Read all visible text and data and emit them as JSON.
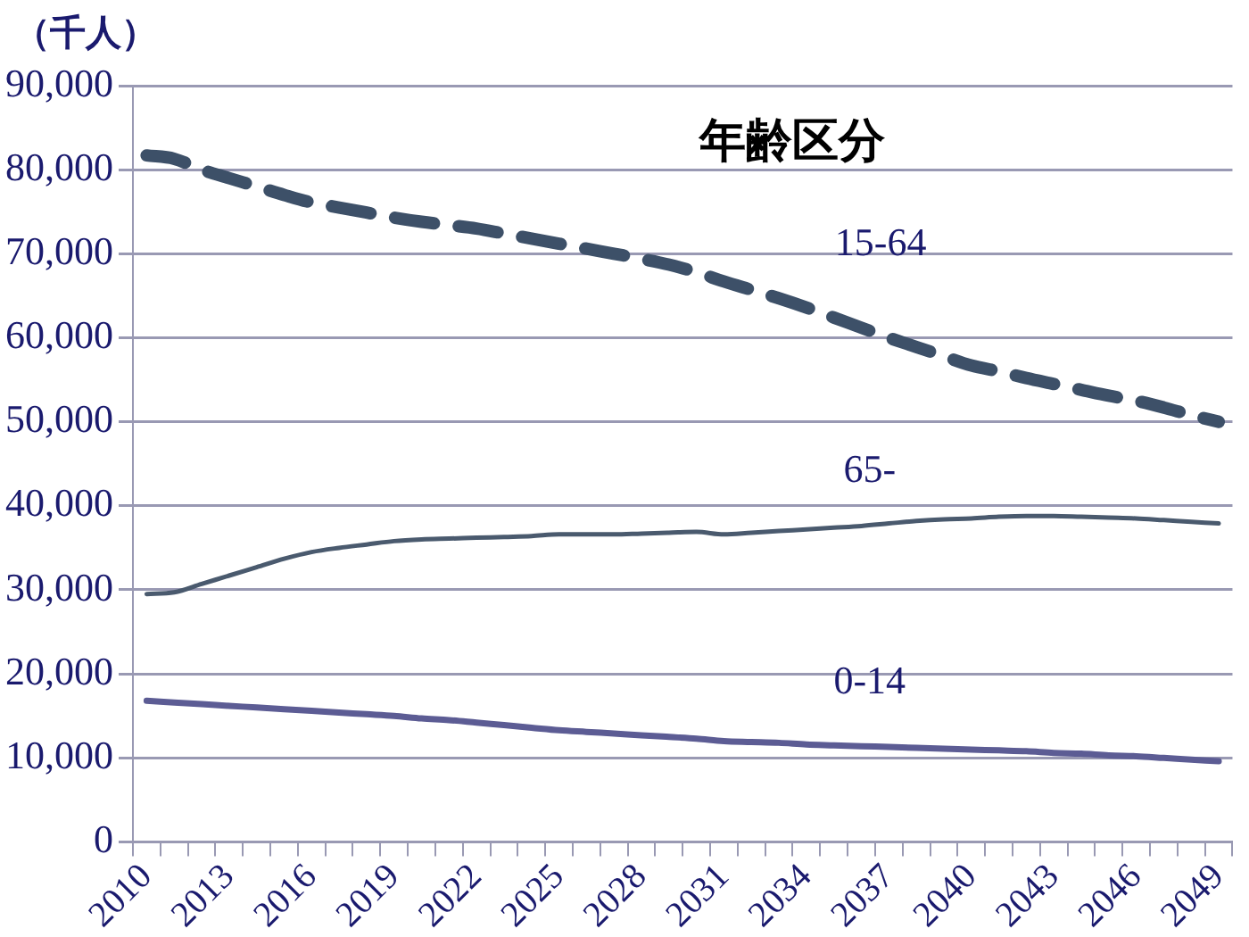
{
  "chart_data": {
    "type": "line",
    "ylabel": "（千人）",
    "legend_title": "年齢区分",
    "categories": [
      "2010",
      null,
      null,
      "2013",
      null,
      null,
      "2016",
      null,
      null,
      "2019",
      null,
      null,
      "2022",
      null,
      null,
      "2025",
      null,
      null,
      "2028",
      null,
      null,
      "2031",
      null,
      null,
      "2034",
      null,
      null,
      "2037",
      null,
      null,
      "2040",
      null,
      null,
      "2043",
      null,
      null,
      "2046",
      null,
      null,
      "2049"
    ],
    "series": [
      {
        "name": "15-64",
        "color": "#3d5068",
        "line_style": "dashed",
        "values": [
          81700,
          81300,
          80000,
          79000,
          78000,
          77000,
          76100,
          75500,
          74900,
          74300,
          73800,
          73400,
          73000,
          72400,
          71800,
          71200,
          70600,
          70000,
          69400,
          68700,
          67800,
          66700,
          65700,
          64700,
          63600,
          62400,
          61200,
          60000,
          58900,
          57800,
          56700,
          56000,
          55200,
          54500,
          53800,
          53100,
          52500,
          51700,
          50800,
          50000
        ]
      },
      {
        "name": "65-",
        "color": "#4a5a6e",
        "line_style": "solid",
        "values": [
          29500,
          29700,
          30700,
          31700,
          32700,
          33700,
          34500,
          35000,
          35400,
          35800,
          36000,
          36100,
          36200,
          36300,
          36400,
          36600,
          36600,
          36600,
          36700,
          36800,
          36900,
          36600,
          36800,
          37000,
          37200,
          37400,
          37600,
          37900,
          38200,
          38400,
          38500,
          38700,
          38800,
          38800,
          38700,
          38600,
          38500,
          38300,
          38100,
          37900
        ]
      },
      {
        "name": "0-14",
        "color": "#5c5c94",
        "line_style": "solid",
        "values": [
          16800,
          16600,
          16400,
          16200,
          16000,
          15800,
          15600,
          15400,
          15200,
          15000,
          14700,
          14500,
          14200,
          13900,
          13600,
          13300,
          13100,
          12900,
          12700,
          12500,
          12300,
          12000,
          11900,
          11800,
          11600,
          11500,
          11400,
          11300,
          11200,
          11100,
          11000,
          10900,
          10800,
          10600,
          10500,
          10300,
          10200,
          10000,
          9800,
          9600
        ]
      }
    ],
    "ylim": [
      0,
      90000
    ],
    "yticks": [
      0,
      {
        "value": 10000,
        "label": "10,000"
      },
      {
        "value": 20000,
        "label": "20,000"
      },
      {
        "value": 30000,
        "label": "30,000"
      },
      {
        "value": 40000,
        "label": "40,000"
      },
      {
        "value": 50000,
        "label": "50,000"
      },
      {
        "value": 60000,
        "label": "60,000"
      },
      {
        "value": 70000,
        "label": "70,000"
      },
      {
        "value": 80000,
        "label": "80,000"
      },
      {
        "value": 90000,
        "label": "90,000"
      }
    ],
    "grid": "y",
    "legend": false,
    "marker": "none"
  }
}
